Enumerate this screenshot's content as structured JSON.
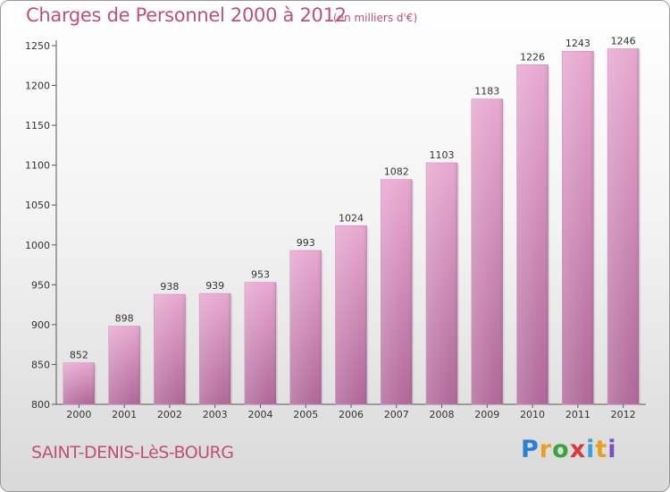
{
  "header": {
    "title": "Charges de Personnel 2000 à 2012",
    "subtitle": "(en milliers d'€)"
  },
  "footer": {
    "city": "SAINT-DENIS-LèS-BOURG",
    "logo": [
      "P",
      "r",
      "o",
      "x",
      "i",
      "t",
      "i"
    ]
  },
  "colors": {
    "accent": "#c0507a",
    "bar_light": "#e8a8d0",
    "bar_dark": "#b0689a"
  },
  "chart_data": {
    "type": "bar",
    "title": "Charges de Personnel 2000 à 2012",
    "subtitle": "(en milliers d'€)",
    "categories": [
      "2000",
      "2001",
      "2002",
      "2003",
      "2004",
      "2005",
      "2006",
      "2007",
      "2008",
      "2009",
      "2010",
      "2011",
      "2012"
    ],
    "values": [
      852,
      898,
      938,
      939,
      953,
      993,
      1024,
      1082,
      1103,
      1183,
      1226,
      1243,
      1246
    ],
    "ylim": [
      800,
      1250
    ],
    "yticks": [
      800,
      850,
      900,
      950,
      1000,
      1050,
      1100,
      1150,
      1200,
      1250
    ],
    "grid": false,
    "xlabel": "",
    "ylabel": ""
  }
}
